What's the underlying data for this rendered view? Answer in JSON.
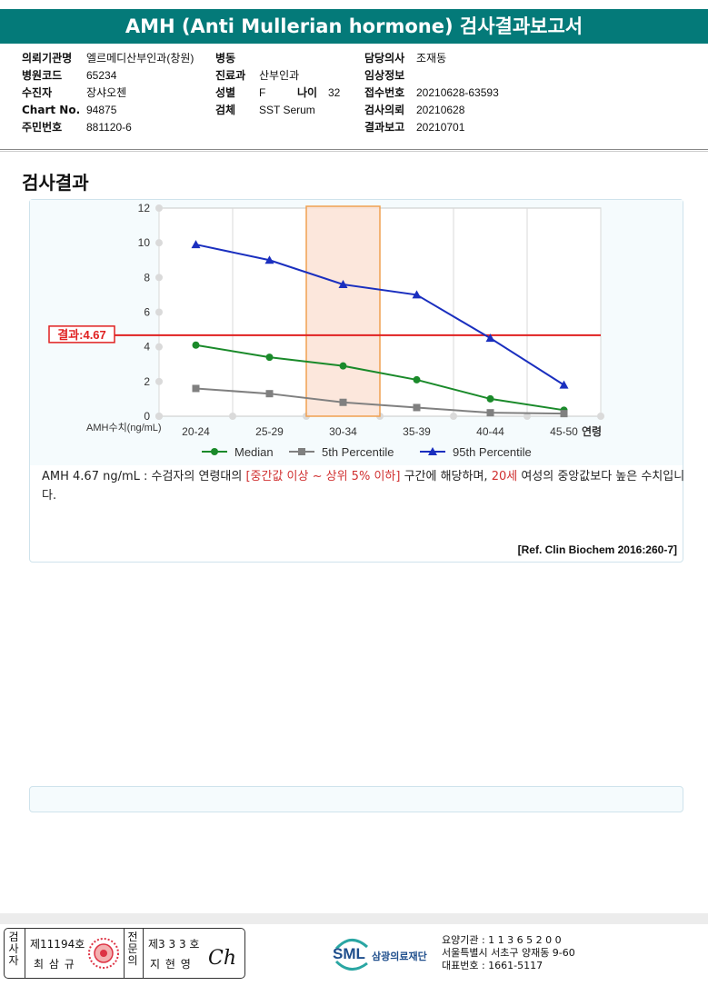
{
  "title": "AMH (Anti Mullerian hormone) 검사결과보고서",
  "patient": {
    "col1": [
      {
        "label": "의뢰기관명",
        "value": "엘르메디산부인과(창원)"
      },
      {
        "label": "병원코드",
        "value": "65234"
      },
      {
        "label": "수진자",
        "value": "장샤오첸"
      },
      {
        "label": "Chart No.",
        "value": "94875"
      },
      {
        "label": "주민번호",
        "value": "881120-6"
      }
    ],
    "col2": [
      {
        "label": "병동",
        "value": ""
      },
      {
        "label": "진료과",
        "value": "산부인과"
      },
      {
        "label": "성별",
        "value": "F"
      },
      {
        "label": "검체",
        "value": "SST Serum"
      }
    ],
    "age_label": "나이",
    "age_value": "32",
    "col3": [
      {
        "label": "담당의사",
        "value": "조재동"
      },
      {
        "label": "임상정보",
        "value": ""
      },
      {
        "label": "접수번호",
        "value": "20210628-63593"
      },
      {
        "label": "검사의뢰",
        "value": "20210628"
      },
      {
        "label": "결과보고",
        "value": "20210701"
      }
    ]
  },
  "section_title": "검사결과",
  "chart_data": {
    "type": "line",
    "categories": [
      "20-24",
      "25-29",
      "30-34",
      "35-39",
      "40-44",
      "45-50"
    ],
    "xlabel": "연령",
    "ylabel": "AMH수치(ng/mL)",
    "ylim": [
      0,
      12
    ],
    "yticks": [
      0,
      2,
      4,
      6,
      8,
      10,
      12
    ],
    "series": [
      {
        "name": "Median",
        "color": "#1a8a2a",
        "marker": "circle",
        "values": [
          4.1,
          3.4,
          2.9,
          2.1,
          1.0,
          0.35
        ]
      },
      {
        "name": "5th Percentile",
        "color": "#808080",
        "marker": "square",
        "values": [
          1.6,
          1.3,
          0.8,
          0.5,
          0.2,
          0.15
        ]
      },
      {
        "name": "95th Percentile",
        "color": "#1a2fbf",
        "marker": "triangle",
        "values": [
          9.9,
          9.0,
          7.6,
          7.0,
          4.5,
          1.8
        ]
      }
    ],
    "highlight_category": "30-34",
    "result_value": 4.67,
    "result_label": "결과:4.67",
    "grid": "vertical",
    "legend_position": "bottom"
  },
  "description": {
    "part1": "AMH  4.67 ng/mL : 수검자의 연령대의 ",
    "range": "[중간값 이상 ~ 상위 5% 이하]",
    "part2": "  구간에 해당하며, ",
    "age": "20세",
    "part3": " 여성의 중앙값보다 높은 수치입니다."
  },
  "reference": "[Ref. Clin Biochem 2016:260-7]",
  "footer": {
    "inspector_label": "검사자",
    "inspector_no": "제11194호",
    "inspector_name": "최 삼 규",
    "specialist_label": "전문의",
    "specialist_no": "제3 3 3 호",
    "specialist_name": "지 현 영",
    "signature": "Ch",
    "logo": "SML",
    "org": "삼광의료재단",
    "lab_lines": [
      "요양기관 : 1 1 3 6 5 2 0 0",
      "서울특별시 서초구 양재동 9-60",
      "대표번호 : 1661-5117"
    ]
  },
  "colors": {
    "header": "#047a79",
    "result_line": "#e02020",
    "highlight_fill": "#fbe3d6",
    "highlight_stroke": "#f0a050"
  }
}
